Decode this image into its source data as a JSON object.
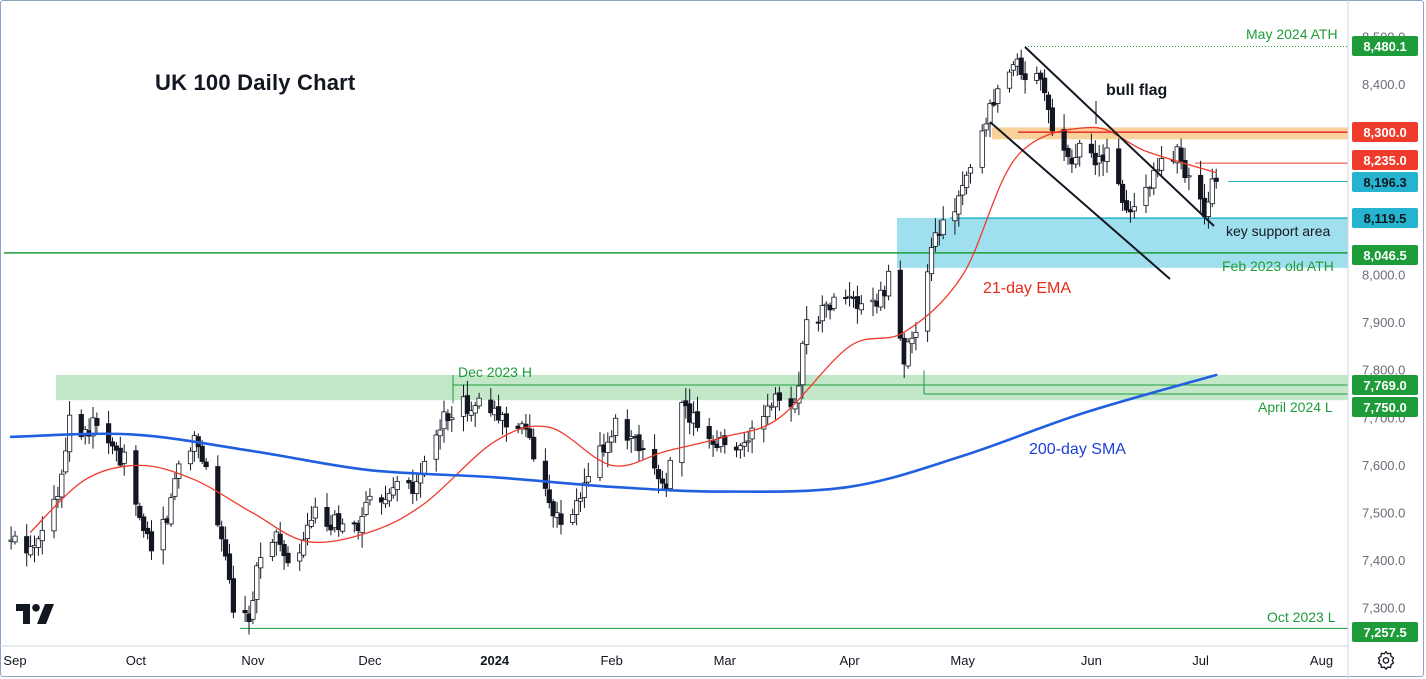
{
  "chart_data": {
    "type": "candlestick",
    "title": "UK 100 Daily Chart",
    "price_axis": {
      "ticks": [
        {
          "value": 8500,
          "label": "8,500.0"
        },
        {
          "value": 8400,
          "label": "8,400.0"
        },
        {
          "value": 8000,
          "label": "8,000.0"
        },
        {
          "value": 7900,
          "label": "7,900.0"
        },
        {
          "value": 7800,
          "label": "7,800.0"
        },
        {
          "value": 7700,
          "label": "7,700.0"
        },
        {
          "value": 7600,
          "label": "7,600.0"
        },
        {
          "value": 7500,
          "label": "7,500.0"
        },
        {
          "value": 7400,
          "label": "7,400.0"
        },
        {
          "value": 7300,
          "label": "7,300.0"
        }
      ]
    },
    "time_axis": {
      "labels": [
        {
          "date": "2023-09-01",
          "label": "Sep",
          "bold": false
        },
        {
          "date": "2023-10-02",
          "label": "Oct",
          "bold": false
        },
        {
          "date": "2023-11-01",
          "label": "Nov",
          "bold": false
        },
        {
          "date": "2023-12-01",
          "label": "Dec",
          "bold": false
        },
        {
          "date": "2024-01-02",
          "label": "2024",
          "bold": true
        },
        {
          "date": "2024-02-01",
          "label": "Feb",
          "bold": false
        },
        {
          "date": "2024-03-01",
          "label": "Mar",
          "bold": false
        },
        {
          "date": "2024-04-02",
          "label": "Apr",
          "bold": false
        },
        {
          "date": "2024-05-01",
          "label": "May",
          "bold": false
        },
        {
          "date": "2024-06-03",
          "label": "Jun",
          "bold": false
        },
        {
          "date": "2024-07-01",
          "label": "Jul",
          "bold": false
        },
        {
          "date": "2024-08-01",
          "label": "Aug",
          "bold": false
        }
      ]
    },
    "price_labels": [
      {
        "value": 8480.1,
        "label": "8,480.1",
        "color": "#1e9c3a"
      },
      {
        "value": 8300.0,
        "label": "8,300.0",
        "color": "#ef3b2c"
      },
      {
        "value": 8235.0,
        "label": "8,235.0",
        "color": "#ef3b2c"
      },
      {
        "value": 8196.3,
        "label": "8,196.3",
        "color": "#25b3cf"
      },
      {
        "value": 8119.5,
        "label": "8,119.5",
        "color": "#25b3cf"
      },
      {
        "value": 8046.5,
        "label": "8,046.5",
        "color": "#1e9c3a"
      },
      {
        "value": 7769.0,
        "label": "7,769.0",
        "color": "#1e9c3a"
      },
      {
        "value": 7750.0,
        "label": "7,750.0",
        "color": "#1e9c3a"
      },
      {
        "value": 7257.5,
        "label": "7,257.5",
        "color": "#1e9c3a"
      }
    ],
    "zones": [
      {
        "name": "resistance-zone",
        "from": 8285,
        "to": 8310,
        "color": "#f7c98a"
      },
      {
        "name": "key-support-zone",
        "from": 8015,
        "to": 8120,
        "color": "#8fd9ea"
      },
      {
        "name": "dec-high-zone",
        "from": 7737,
        "to": 7790,
        "color": "#b9e3bf"
      }
    ],
    "annotations": [
      {
        "text": "May 2024 ATH",
        "color": "#1e9c3a"
      },
      {
        "text": "bull flag",
        "color": "#131722"
      },
      {
        "text": "key support area",
        "color": "#131722"
      },
      {
        "text": "Feb 2023 old ATH",
        "color": "#1e9c3a"
      },
      {
        "text": "21-day EMA",
        "color": "#e8281b"
      },
      {
        "text": "Dec 2023 H",
        "color": "#1e9c3a"
      },
      {
        "text": "April 2024 L",
        "color": "#1e9c3a"
      },
      {
        "text": "200-day SMA",
        "color": "#1f3fd6"
      },
      {
        "text": "Oct 2023 L",
        "color": "#1e9c3a"
      }
    ],
    "series": [
      {
        "type": "candlestick",
        "up_color": "#ffffff",
        "down_color": "#131722",
        "close_path": [
          {
            "date": "2023-08-31",
            "close": 7440
          },
          {
            "date": "2023-09-05",
            "close": 7420
          },
          {
            "date": "2023-09-08",
            "close": 7480
          },
          {
            "date": "2023-09-12",
            "close": 7530
          },
          {
            "date": "2023-09-15",
            "close": 7710
          },
          {
            "date": "2023-09-19",
            "close": 7670
          },
          {
            "date": "2023-09-22",
            "close": 7690
          },
          {
            "date": "2023-09-27",
            "close": 7620
          },
          {
            "date": "2023-09-29",
            "close": 7610
          },
          {
            "date": "2023-10-03",
            "close": 7480
          },
          {
            "date": "2023-10-06",
            "close": 7440
          },
          {
            "date": "2023-10-10",
            "close": 7490
          },
          {
            "date": "2023-10-13",
            "close": 7610
          },
          {
            "date": "2023-10-17",
            "close": 7660
          },
          {
            "date": "2023-10-20",
            "close": 7600
          },
          {
            "date": "2023-10-24",
            "close": 7440
          },
          {
            "date": "2023-10-27",
            "close": 7310
          },
          {
            "date": "2023-10-31",
            "close": 7290
          },
          {
            "date": "2023-11-03",
            "close": 7420
          },
          {
            "date": "2023-11-07",
            "close": 7450
          },
          {
            "date": "2023-11-10",
            "close": 7380
          },
          {
            "date": "2023-11-14",
            "close": 7440
          },
          {
            "date": "2023-11-17",
            "close": 7500
          },
          {
            "date": "2023-11-21",
            "close": 7470
          },
          {
            "date": "2023-11-24",
            "close": 7490
          },
          {
            "date": "2023-11-28",
            "close": 7460
          },
          {
            "date": "2023-12-01",
            "close": 7530
          },
          {
            "date": "2023-12-05",
            "close": 7510
          },
          {
            "date": "2023-12-08",
            "close": 7560
          },
          {
            "date": "2023-12-12",
            "close": 7540
          },
          {
            "date": "2023-12-15",
            "close": 7600
          },
          {
            "date": "2023-12-19",
            "close": 7680
          },
          {
            "date": "2023-12-22",
            "close": 7720
          },
          {
            "date": "2023-12-28",
            "close": 7730
          },
          {
            "date": "2024-01-03",
            "close": 7700
          },
          {
            "date": "2024-01-09",
            "close": 7690
          },
          {
            "date": "2024-01-12",
            "close": 7620
          },
          {
            "date": "2024-01-17",
            "close": 7510
          },
          {
            "date": "2024-01-19",
            "close": 7460
          },
          {
            "date": "2024-01-24",
            "close": 7530
          },
          {
            "date": "2024-01-29",
            "close": 7630
          },
          {
            "date": "2024-02-02",
            "close": 7680
          },
          {
            "date": "2024-02-07",
            "close": 7640
          },
          {
            "date": "2024-02-12",
            "close": 7580
          },
          {
            "date": "2024-02-15",
            "close": 7560
          },
          {
            "date": "2024-02-19",
            "close": 7720
          },
          {
            "date": "2024-02-23",
            "close": 7690
          },
          {
            "date": "2024-02-28",
            "close": 7650
          },
          {
            "date": "2024-03-04",
            "close": 7640
          },
          {
            "date": "2024-03-07",
            "close": 7660
          },
          {
            "date": "2024-03-11",
            "close": 7700
          },
          {
            "date": "2024-03-14",
            "close": 7740
          },
          {
            "date": "2024-03-19",
            "close": 7730
          },
          {
            "date": "2024-03-22",
            "close": 7900
          },
          {
            "date": "2024-03-27",
            "close": 7930
          },
          {
            "date": "2024-04-02",
            "close": 7960
          },
          {
            "date": "2024-04-05",
            "close": 7920
          },
          {
            "date": "2024-04-09",
            "close": 7940
          },
          {
            "date": "2024-04-12",
            "close": 7990
          },
          {
            "date": "2024-04-16",
            "close": 7830
          },
          {
            "date": "2024-04-19",
            "close": 7880
          },
          {
            "date": "2024-04-23",
            "close": 8040
          },
          {
            "date": "2024-04-26",
            "close": 8130
          },
          {
            "date": "2024-04-30",
            "close": 8150
          },
          {
            "date": "2024-05-03",
            "close": 8220
          },
          {
            "date": "2024-05-08",
            "close": 8340
          },
          {
            "date": "2024-05-13",
            "close": 8420
          },
          {
            "date": "2024-05-15",
            "close": 8440
          },
          {
            "date": "2024-05-17",
            "close": 8420
          },
          {
            "date": "2024-05-21",
            "close": 8410
          },
          {
            "date": "2024-05-24",
            "close": 8320
          },
          {
            "date": "2024-05-29",
            "close": 8230
          },
          {
            "date": "2024-05-31",
            "close": 8270
          },
          {
            "date": "2024-06-04",
            "close": 8240
          },
          {
            "date": "2024-06-07",
            "close": 8260
          },
          {
            "date": "2024-06-11",
            "close": 8150
          },
          {
            "date": "2024-06-14",
            "close": 8140
          },
          {
            "date": "2024-06-18",
            "close": 8190
          },
          {
            "date": "2024-06-21",
            "close": 8230
          },
          {
            "date": "2024-06-25",
            "close": 8260
          },
          {
            "date": "2024-06-28",
            "close": 8200
          },
          {
            "date": "2024-07-02",
            "close": 8130
          },
          {
            "date": "2024-07-04",
            "close": 8200
          },
          {
            "date": "2024-07-05",
            "close": 8196.3
          }
        ]
      },
      {
        "name": "21-day EMA",
        "type": "line",
        "color": "#ef3b2c",
        "points": [
          {
            "date": "2023-09-05",
            "value": 7460
          },
          {
            "date": "2023-09-19",
            "value": 7570
          },
          {
            "date": "2023-10-03",
            "value": 7600
          },
          {
            "date": "2023-10-17",
            "value": 7570
          },
          {
            "date": "2023-11-01",
            "value": 7500
          },
          {
            "date": "2023-11-15",
            "value": 7440
          },
          {
            "date": "2023-12-01",
            "value": 7460
          },
          {
            "date": "2023-12-15",
            "value": 7520
          },
          {
            "date": "2024-01-02",
            "value": 7650
          },
          {
            "date": "2024-01-16",
            "value": 7680
          },
          {
            "date": "2024-02-01",
            "value": 7600
          },
          {
            "date": "2024-02-15",
            "value": 7630
          },
          {
            "date": "2024-03-01",
            "value": 7660
          },
          {
            "date": "2024-03-15",
            "value": 7700
          },
          {
            "date": "2024-04-02",
            "value": 7850
          },
          {
            "date": "2024-04-16",
            "value": 7880
          },
          {
            "date": "2024-05-01",
            "value": 8000
          },
          {
            "date": "2024-05-15",
            "value": 8250
          },
          {
            "date": "2024-06-03",
            "value": 8310
          },
          {
            "date": "2024-06-17",
            "value": 8260
          },
          {
            "date": "2024-07-05",
            "value": 8215
          }
        ]
      },
      {
        "name": "200-day SMA",
        "type": "line",
        "color": "#1f5fe0",
        "points": [
          {
            "date": "2023-08-31",
            "value": 7660
          },
          {
            "date": "2023-10-01",
            "value": 7665
          },
          {
            "date": "2023-11-01",
            "value": 7630
          },
          {
            "date": "2023-12-01",
            "value": 7590
          },
          {
            "date": "2024-01-02",
            "value": 7575
          },
          {
            "date": "2024-02-01",
            "value": 7555
          },
          {
            "date": "2024-03-01",
            "value": 7545
          },
          {
            "date": "2024-04-02",
            "value": 7555
          },
          {
            "date": "2024-05-01",
            "value": 7620
          },
          {
            "date": "2024-06-01",
            "value": 7710
          },
          {
            "date": "2024-07-05",
            "value": 7790
          }
        ]
      }
    ]
  }
}
